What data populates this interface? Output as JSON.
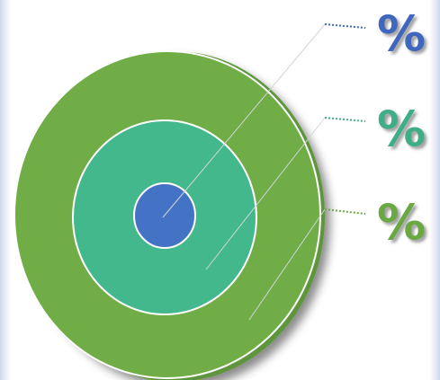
{
  "labels": {
    "inner": "%",
    "middle": "%",
    "outer": "%"
  },
  "colors": {
    "inner": "#4472c4",
    "middle": "#44b88d",
    "outer": "#70ad47",
    "outer_rim": "#5f963c",
    "inner_label": "#3e67bd",
    "middle_label": "#3fae86",
    "outer_label": "#6aa842"
  }
}
